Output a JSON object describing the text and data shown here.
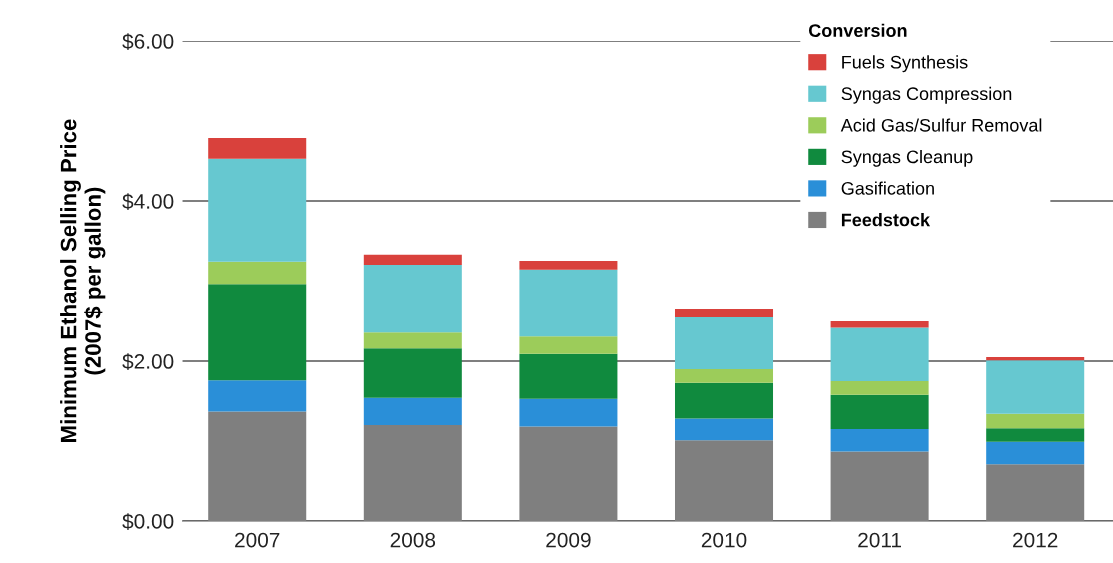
{
  "chart_data": {
    "type": "bar",
    "stacked": true,
    "categories": [
      "2007",
      "2008",
      "2009",
      "2010",
      "2011",
      "2012"
    ],
    "ylabel": "Minimum Ethanol Selling Price\n(2007$ per gallon)",
    "legend_title": "Conversion",
    "ylim": [
      0,
      6
    ],
    "yticks": [
      {
        "value": 0,
        "label": "$0.00"
      },
      {
        "value": 2,
        "label": "$2.00"
      },
      {
        "value": 4,
        "label": "$4.00"
      },
      {
        "value": 6,
        "label": "$6.00"
      }
    ],
    "grid": "y",
    "legend": "top right",
    "series": [
      {
        "name": "Feedstock",
        "color": "#7f7f7f",
        "values": [
          1.37,
          1.2,
          1.18,
          1.01,
          0.87,
          0.71
        ]
      },
      {
        "name": "Gasification",
        "color": "#2a8fd8",
        "values": [
          0.39,
          0.34,
          0.35,
          0.27,
          0.28,
          0.28
        ]
      },
      {
        "name": "Syngas Cleanup",
        "color": "#108a3e",
        "values": [
          1.2,
          0.62,
          0.56,
          0.45,
          0.43,
          0.17
        ]
      },
      {
        "name": "Acid Gas/Sulfur Removal",
        "color": "#9ccc5a",
        "values": [
          0.28,
          0.2,
          0.22,
          0.17,
          0.17,
          0.18
        ]
      },
      {
        "name": "Syngas Compression",
        "color": "#66c8d0",
        "values": [
          1.29,
          0.84,
          0.83,
          0.65,
          0.67,
          0.67
        ]
      },
      {
        "name": "Fuels Synthesis",
        "color": "#d9413c",
        "values": [
          0.26,
          0.13,
          0.11,
          0.1,
          0.08,
          0.04
        ]
      }
    ]
  }
}
